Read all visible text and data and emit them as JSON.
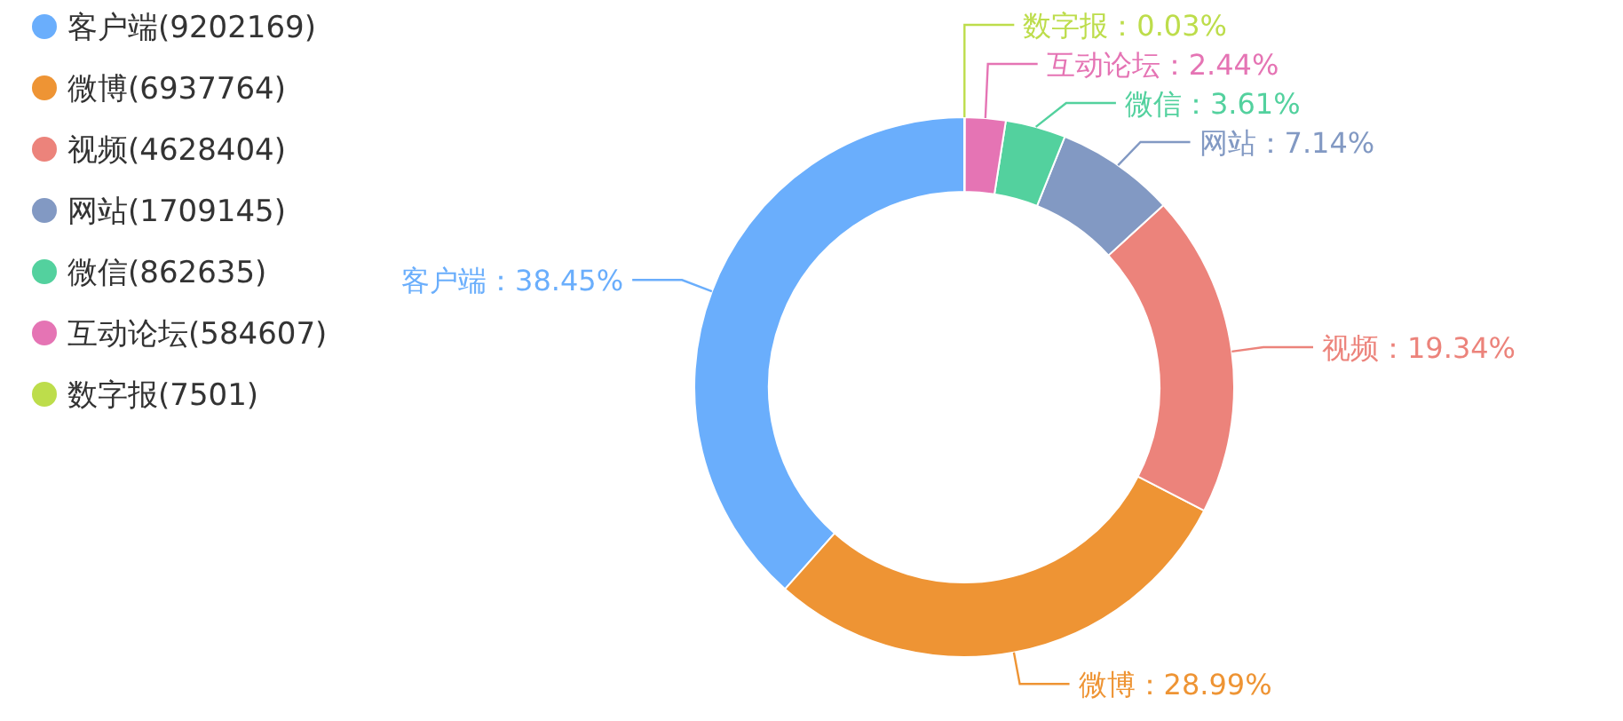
{
  "chart_data": {
    "type": "donut",
    "categories": [
      "客户端",
      "微博",
      "视频",
      "网站",
      "微信",
      "互动论坛",
      "数字报"
    ],
    "values": [
      38.45,
      28.99,
      19.34,
      7.14,
      3.61,
      2.44,
      0.03
    ],
    "value_labels": [
      "：38.45%",
      "：28.99%",
      "：19.34%",
      "：7.14%",
      "：3.61%",
      "：2.44%",
      "：0.03%"
    ],
    "annotations": [
      "(9202169)",
      "(6937764)",
      "(4628404)",
      "(1709145)",
      "(862635)",
      "(584607)",
      "(7501)"
    ],
    "colors": [
      "#6aaefc",
      "#ee9434",
      "#ec837b",
      "#8299c3",
      "#53d19e",
      "#e574b4",
      "#bddd4b"
    ],
    "legend": "top left"
  }
}
